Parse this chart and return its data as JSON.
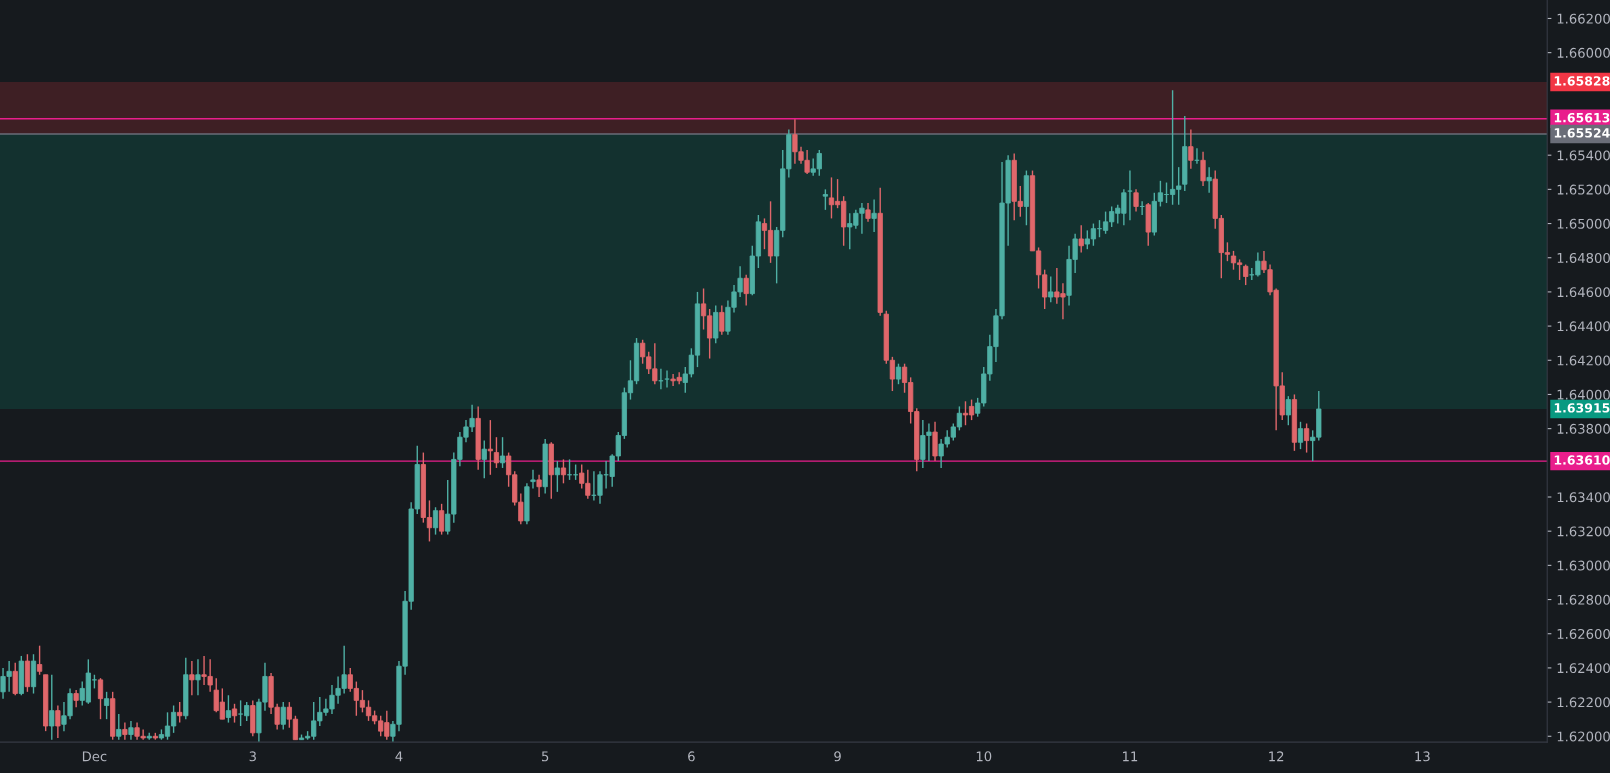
{
  "chart_data": {
    "type": "candlestick",
    "categories": [
      null,
      null,
      null,
      null,
      null,
      null,
      null,
      null,
      null,
      null,
      null,
      null,
      null,
      null,
      null,
      "Dec",
      null,
      null,
      null,
      null,
      null,
      null,
      null,
      null,
      null,
      null,
      null,
      null,
      null,
      null,
      null,
      null,
      null,
      null,
      null,
      null,
      null,
      null,
      null,
      null,
      null,
      "3",
      null,
      null,
      null,
      null,
      null,
      null,
      null,
      null,
      null,
      null,
      null,
      null,
      null,
      null,
      null,
      null,
      null,
      null,
      null,
      null,
      null,
      null,
      null,
      "4",
      null,
      null,
      null,
      null,
      null,
      null,
      null,
      null,
      null,
      null,
      null,
      null,
      null,
      null,
      null,
      null,
      null,
      null,
      null,
      null,
      null,
      null,
      null,
      "5",
      null,
      null,
      null,
      null,
      null,
      null,
      null,
      null,
      null,
      null,
      null,
      null,
      null,
      null,
      null,
      null,
      null,
      null,
      null,
      null,
      null,
      null,
      null,
      "6",
      null,
      null,
      null,
      null,
      null,
      null,
      null,
      null,
      null,
      null,
      null,
      null,
      null,
      null,
      null,
      null,
      null,
      null,
      null,
      null,
      null,
      null,
      null,
      "9",
      null,
      null,
      null,
      null,
      null,
      null,
      null,
      null,
      null,
      null,
      null,
      null,
      null,
      null,
      null,
      null,
      null,
      null,
      null,
      null,
      null,
      null,
      null,
      "10",
      null,
      null,
      null,
      null,
      null,
      null,
      null,
      null,
      null,
      null,
      null,
      null,
      null,
      null,
      null,
      null,
      null,
      null,
      null,
      null,
      null,
      null,
      null,
      "11",
      null,
      null,
      null,
      null,
      null,
      null,
      null,
      null,
      null,
      null,
      null,
      null,
      null,
      null,
      null,
      null,
      null,
      null,
      null,
      null,
      null,
      null,
      null,
      "12",
      null,
      null,
      null,
      null,
      null,
      null,
      null,
      null,
      null,
      null,
      null,
      null,
      null,
      null,
      null,
      null,
      null,
      null,
      null,
      null,
      null,
      null,
      null,
      "13",
      null,
      null,
      null,
      null,
      null,
      null,
      null,
      null,
      null,
      null,
      null,
      null,
      null,
      null,
      null,
      null,
      null,
      null,
      null,
      null
    ],
    "ohlc": [
      [
        1.6226,
        1.624,
        1.6222,
        1.6235
      ],
      [
        1.6235,
        1.6244,
        1.6226,
        1.6238
      ],
      [
        1.6238,
        1.6243,
        1.6224,
        1.6225
      ],
      [
        1.6225,
        1.6247,
        1.6224,
        1.6244
      ],
      [
        1.6244,
        1.6248,
        1.6226,
        1.6229
      ],
      [
        1.6229,
        1.6248,
        1.6225,
        1.6244
      ],
      [
        1.6242,
        1.6253,
        1.6236,
        1.6238
      ],
      [
        1.6236,
        1.6236,
        1.6203,
        1.6206
      ],
      [
        1.6206,
        1.6236,
        1.6198,
        1.6215
      ],
      [
        1.6215,
        1.6218,
        1.6199,
        1.6206
      ],
      [
        1.6207,
        1.622,
        1.6203,
        1.6212
      ],
      [
        1.6212,
        1.6228,
        1.621,
        1.6225
      ],
      [
        1.6225,
        1.6227,
        1.6217,
        1.6221
      ],
      [
        1.6221,
        1.6232,
        1.6218,
        1.6228
      ],
      [
        1.622,
        1.6245,
        1.6219,
        1.6237
      ],
      [
        1.6233,
        1.6236,
        1.6228,
        1.6233
      ],
      [
        1.6233,
        1.6234,
        1.621,
        1.6222
      ],
      [
        1.6218,
        1.6226,
        1.621,
        1.6222
      ],
      [
        1.6222,
        1.6226,
        1.6198,
        1.62
      ],
      [
        1.62,
        1.6213,
        1.6198,
        1.6204
      ],
      [
        1.6204,
        1.6208,
        1.6198,
        1.6201
      ],
      [
        1.6201,
        1.6209,
        1.6198,
        1.6205
      ],
      [
        1.6205,
        1.6208,
        1.6198,
        1.62
      ],
      [
        1.62,
        1.6204,
        1.6198,
        1.6199
      ],
      [
        1.6199,
        1.6202,
        1.6198,
        1.62
      ],
      [
        1.62,
        1.6202,
        1.6198,
        1.6199
      ],
      [
        1.6199,
        1.6204,
        1.6198,
        1.6201
      ],
      [
        1.62,
        1.6214,
        1.6198,
        1.6206
      ],
      [
        1.6206,
        1.6218,
        1.6202,
        1.6214
      ],
      [
        1.6214,
        1.622,
        1.6208,
        1.6212
      ],
      [
        1.6212,
        1.6246,
        1.621,
        1.6236
      ],
      [
        1.6236,
        1.6244,
        1.6224,
        1.6233
      ],
      [
        1.6233,
        1.6245,
        1.6224,
        1.6236
      ],
      [
        1.6236,
        1.6247,
        1.623,
        1.6235
      ],
      [
        1.6235,
        1.6245,
        1.6226,
        1.623
      ],
      [
        1.6227,
        1.6234,
        1.6214,
        1.6215
      ],
      [
        1.622,
        1.6228,
        1.621,
        1.621
      ],
      [
        1.6211,
        1.6224,
        1.6208,
        1.6215
      ],
      [
        1.6216,
        1.6219,
        1.6208,
        1.6212
      ],
      [
        1.6213,
        1.6221,
        1.6206,
        1.6213
      ],
      [
        1.6212,
        1.622,
        1.6209,
        1.6218
      ],
      [
        1.6218,
        1.6221,
        1.62,
        1.6202
      ],
      [
        1.6202,
        1.6222,
        1.6197,
        1.622
      ],
      [
        1.622,
        1.6243,
        1.6215,
        1.6235
      ],
      [
        1.6235,
        1.6237,
        1.6213,
        1.6217
      ],
      [
        1.6217,
        1.6219,
        1.6204,
        1.6207
      ],
      [
        1.6207,
        1.622,
        1.6204,
        1.6217
      ],
      [
        1.6217,
        1.622,
        1.6205,
        1.621
      ],
      [
        1.621,
        1.6212,
        1.6198,
        1.6198
      ],
      [
        1.6198,
        1.6201,
        1.6198,
        1.6199
      ],
      [
        1.6199,
        1.6203,
        1.6198,
        1.62
      ],
      [
        1.62,
        1.622,
        1.6198,
        1.6209
      ],
      [
        1.6209,
        1.6223,
        1.6206,
        1.6214
      ],
      [
        1.6214,
        1.6222,
        1.6212,
        1.6216
      ],
      [
        1.6216,
        1.623,
        1.6213,
        1.6224
      ],
      [
        1.6224,
        1.6235,
        1.6219,
        1.6228
      ],
      [
        1.6228,
        1.6253,
        1.6225,
        1.6236
      ],
      [
        1.6236,
        1.624,
        1.6226,
        1.6228
      ],
      [
        1.6228,
        1.6232,
        1.6212,
        1.6221
      ],
      [
        1.6221,
        1.6227,
        1.6214,
        1.6217
      ],
      [
        1.6217,
        1.6221,
        1.6209,
        1.6212
      ],
      [
        1.6212,
        1.6215,
        1.6207,
        1.6209
      ],
      [
        1.6209,
        1.6212,
        1.62,
        1.6203
      ],
      [
        1.6208,
        1.6215,
        1.6198,
        1.62
      ],
      [
        1.62,
        1.6209,
        1.6197,
        1.6207
      ],
      [
        1.6207,
        1.6244,
        1.6203,
        1.6241
      ],
      [
        1.6241,
        1.6285,
        1.6236,
        1.6279
      ],
      [
        1.6279,
        1.6337,
        1.6274,
        1.6333
      ],
      [
        1.6333,
        1.637,
        1.633,
        1.6359
      ],
      [
        1.6359,
        1.6366,
        1.6325,
        1.6328
      ],
      [
        1.6328,
        1.6338,
        1.6314,
        1.6322
      ],
      [
        1.6322,
        1.6334,
        1.6318,
        1.6332
      ],
      [
        1.6332,
        1.6336,
        1.6318,
        1.632
      ],
      [
        1.632,
        1.635,
        1.6318,
        1.633
      ],
      [
        1.633,
        1.6366,
        1.6325,
        1.6362
      ],
      [
        1.6362,
        1.6378,
        1.6358,
        1.6375
      ],
      [
        1.6375,
        1.6385,
        1.6372,
        1.6381
      ],
      [
        1.6381,
        1.6394,
        1.6378,
        1.6386
      ],
      [
        1.6386,
        1.6393,
        1.6356,
        1.6362
      ],
      [
        1.6362,
        1.6373,
        1.6351,
        1.6368
      ],
      [
        1.6368,
        1.6385,
        1.6353,
        1.6367
      ],
      [
        1.6366,
        1.6375,
        1.6357,
        1.636
      ],
      [
        1.636,
        1.6375,
        1.6357,
        1.6364
      ],
      [
        1.6364,
        1.6366,
        1.6346,
        1.6353
      ],
      [
        1.6353,
        1.6355,
        1.6335,
        1.6337
      ],
      [
        1.6337,
        1.6342,
        1.6324,
        1.6326
      ],
      [
        1.6326,
        1.6348,
        1.6324,
        1.6346
      ],
      [
        1.6349,
        1.6356,
        1.6345,
        1.635
      ],
      [
        1.635,
        1.6353,
        1.634,
        1.6346
      ],
      [
        1.6346,
        1.6374,
        1.6342,
        1.6371
      ],
      [
        1.6371,
        1.6372,
        1.6339,
        1.6353
      ],
      [
        1.6353,
        1.6361,
        1.6343,
        1.6357
      ],
      [
        1.6357,
        1.6362,
        1.6348,
        1.6353
      ],
      [
        1.6353,
        1.6362,
        1.635,
        1.6353
      ],
      [
        1.6353,
        1.6359,
        1.635,
        1.6353
      ],
      [
        1.6354,
        1.6359,
        1.6345,
        1.6348
      ],
      [
        1.6348,
        1.6356,
        1.6339,
        1.6341
      ],
      [
        1.6341,
        1.6355,
        1.6338,
        1.6341
      ],
      [
        1.6341,
        1.6355,
        1.6336,
        1.6353
      ],
      [
        1.6353,
        1.6361,
        1.6345,
        1.6353
      ],
      [
        1.6352,
        1.6365,
        1.6346,
        1.6364
      ],
      [
        1.6364,
        1.6378,
        1.6361,
        1.6376
      ],
      [
        1.6376,
        1.6404,
        1.6374,
        1.6401
      ],
      [
        1.6401,
        1.642,
        1.6397,
        1.6408
      ],
      [
        1.6408,
        1.6433,
        1.6406,
        1.643
      ],
      [
        1.643,
        1.6432,
        1.6418,
        1.6422
      ],
      [
        1.6422,
        1.6425,
        1.6412,
        1.6415
      ],
      [
        1.6415,
        1.643,
        1.6406,
        1.6408
      ],
      [
        1.6408,
        1.6415,
        1.6403,
        1.6408
      ],
      [
        1.6409,
        1.6414,
        1.6404,
        1.6409
      ],
      [
        1.6409,
        1.6412,
        1.6405,
        1.6408
      ],
      [
        1.641,
        1.6413,
        1.6406,
        1.6408
      ],
      [
        1.6407,
        1.6416,
        1.6401,
        1.6412
      ],
      [
        1.6412,
        1.6427,
        1.641,
        1.6423
      ],
      [
        1.6423,
        1.646,
        1.6416,
        1.6453
      ],
      [
        1.6453,
        1.6462,
        1.6438,
        1.6446
      ],
      [
        1.6446,
        1.645,
        1.6421,
        1.6433
      ],
      [
        1.6433,
        1.6452,
        1.643,
        1.6448
      ],
      [
        1.6448,
        1.6452,
        1.6435,
        1.6437
      ],
      [
        1.6437,
        1.6455,
        1.6435,
        1.6451
      ],
      [
        1.6451,
        1.6464,
        1.6448,
        1.646
      ],
      [
        1.646,
        1.6475,
        1.6457,
        1.6468
      ],
      [
        1.6468,
        1.647,
        1.6452,
        1.6459
      ],
      [
        1.6459,
        1.6487,
        1.6458,
        1.6481
      ],
      [
        1.6481,
        1.6505,
        1.6474,
        1.6501
      ],
      [
        1.65,
        1.6503,
        1.6485,
        1.6496
      ],
      [
        1.6496,
        1.6513,
        1.6477,
        1.6481
      ],
      [
        1.6481,
        1.6498,
        1.6465,
        1.6496
      ],
      [
        1.6496,
        1.6543,
        1.6492,
        1.6532
      ],
      [
        1.6532,
        1.6555,
        1.6527,
        1.6552
      ],
      [
        1.6552,
        1.6561,
        1.6535,
        1.6542
      ],
      [
        1.6542,
        1.6545,
        1.6535,
        1.6537
      ],
      [
        1.6537,
        1.6543,
        1.6529,
        1.653
      ],
      [
        1.653,
        1.6538,
        1.6528,
        1.6532
      ],
      [
        1.6532,
        1.6543,
        1.6528,
        1.6541
      ],
      [
        1.6516,
        1.652,
        1.6508,
        1.6517
      ],
      [
        1.6515,
        1.6527,
        1.6503,
        1.6511
      ],
      [
        1.6513,
        1.6526,
        1.6509,
        1.6511
      ],
      [
        1.6513,
        1.6516,
        1.6487,
        1.6498
      ],
      [
        1.6498,
        1.6506,
        1.6485,
        1.65
      ],
      [
        1.6499,
        1.6508,
        1.6497,
        1.6506
      ],
      [
        1.6506,
        1.6512,
        1.6494,
        1.6509
      ],
      [
        1.6508,
        1.6512,
        1.6501,
        1.6503
      ],
      [
        1.6503,
        1.6514,
        1.6495,
        1.6506
      ],
      [
        1.6506,
        1.6521,
        1.6446,
        1.6448
      ],
      [
        1.6447,
        1.6449,
        1.6418,
        1.642
      ],
      [
        1.642,
        1.6422,
        1.6402,
        1.6409
      ],
      [
        1.6409,
        1.6418,
        1.6406,
        1.6416
      ],
      [
        1.6416,
        1.6418,
        1.6401,
        1.6407
      ],
      [
        1.6407,
        1.641,
        1.6383,
        1.639
      ],
      [
        1.639,
        1.6392,
        1.6355,
        1.6362
      ],
      [
        1.6362,
        1.6385,
        1.6357,
        1.6376
      ],
      [
        1.6376,
        1.6383,
        1.6361,
        1.6378
      ],
      [
        1.6378,
        1.6384,
        1.6361,
        1.6364
      ],
      [
        1.6364,
        1.6374,
        1.6357,
        1.6371
      ],
      [
        1.6371,
        1.6379,
        1.6369,
        1.6375
      ],
      [
        1.6375,
        1.6383,
        1.6373,
        1.6381
      ],
      [
        1.6381,
        1.6393,
        1.6379,
        1.6389
      ],
      [
        1.6389,
        1.6396,
        1.6382,
        1.6388
      ],
      [
        1.6393,
        1.6397,
        1.6385,
        1.6388
      ],
      [
        1.6389,
        1.6398,
        1.6387,
        1.6395
      ],
      [
        1.6395,
        1.6416,
        1.6393,
        1.6412
      ],
      [
        1.6412,
        1.6435,
        1.6408,
        1.6428
      ],
      [
        1.6428,
        1.645,
        1.6419,
        1.6446
      ],
      [
        1.6446,
        1.6536,
        1.6444,
        1.6512
      ],
      [
        1.6512,
        1.654,
        1.6487,
        1.6537
      ],
      [
        1.6537,
        1.6541,
        1.6502,
        1.6513
      ],
      [
        1.6513,
        1.6522,
        1.6504,
        1.651
      ],
      [
        1.651,
        1.6531,
        1.6499,
        1.6528
      ],
      [
        1.6528,
        1.6531,
        1.6484,
        1.6484
      ],
      [
        1.6484,
        1.6486,
        1.6462,
        1.647
      ],
      [
        1.647,
        1.6473,
        1.645,
        1.6457
      ],
      [
        1.6457,
        1.6469,
        1.6454,
        1.646
      ],
      [
        1.646,
        1.6474,
        1.6453,
        1.6457
      ],
      [
        1.6459,
        1.6465,
        1.6444,
        1.6457
      ],
      [
        1.6458,
        1.6487,
        1.6452,
        1.6479
      ],
      [
        1.6479,
        1.6494,
        1.6471,
        1.6491
      ],
      [
        1.6491,
        1.6499,
        1.6483,
        1.6487
      ],
      [
        1.6488,
        1.6496,
        1.6485,
        1.6491
      ],
      [
        1.6491,
        1.65,
        1.6487,
        1.6497
      ],
      [
        1.6497,
        1.6502,
        1.6492,
        1.6497
      ],
      [
        1.6496,
        1.6507,
        1.6494,
        1.6501
      ],
      [
        1.6501,
        1.651,
        1.6498,
        1.6507
      ],
      [
        1.6506,
        1.6511,
        1.65,
        1.6509
      ],
      [
        1.6506,
        1.652,
        1.6499,
        1.6518
      ],
      [
        1.6519,
        1.6531,
        1.6502,
        1.6519
      ],
      [
        1.6518,
        1.652,
        1.6507,
        1.651
      ],
      [
        1.651,
        1.6513,
        1.6505,
        1.651
      ],
      [
        1.6511,
        1.6512,
        1.6487,
        1.6495
      ],
      [
        1.6495,
        1.6518,
        1.6493,
        1.6513
      ],
      [
        1.6513,
        1.6525,
        1.651,
        1.6518
      ],
      [
        1.6517,
        1.6524,
        1.6512,
        1.6517
      ],
      [
        1.6517,
        1.6578,
        1.6511,
        1.652
      ],
      [
        1.652,
        1.6533,
        1.6511,
        1.6522
      ],
      [
        1.6523,
        1.6563,
        1.6519,
        1.6545
      ],
      [
        1.6545,
        1.6555,
        1.6532,
        1.6537
      ],
      [
        1.6537,
        1.6544,
        1.6535,
        1.6537
      ],
      [
        1.6537,
        1.6542,
        1.6522,
        1.6525
      ],
      [
        1.6525,
        1.6533,
        1.6518,
        1.6527
      ],
      [
        1.6526,
        1.6531,
        1.6497,
        1.6503
      ],
      [
        1.6503,
        1.6505,
        1.6468,
        1.6483
      ],
      [
        1.6483,
        1.6489,
        1.6478,
        1.6482
      ],
      [
        1.6481,
        1.6484,
        1.6473,
        1.6477
      ],
      [
        1.6477,
        1.6479,
        1.6467,
        1.6476
      ],
      [
        1.6475,
        1.6476,
        1.6464,
        1.6469
      ],
      [
        1.647,
        1.6474,
        1.6467,
        1.647
      ],
      [
        1.647,
        1.6483,
        1.6469,
        1.6478
      ],
      [
        1.6478,
        1.6484,
        1.6471,
        1.6473
      ],
      [
        1.6473,
        1.6476,
        1.6458,
        1.646
      ],
      [
        1.6461,
        1.6462,
        1.6379,
        1.6405
      ],
      [
        1.6405,
        1.6413,
        1.6385,
        1.6388
      ],
      [
        1.6388,
        1.6399,
        1.6382,
        1.6397
      ],
      [
        1.6397,
        1.64,
        1.6367,
        1.6372
      ],
      [
        1.6372,
        1.6384,
        1.6368,
        1.638
      ],
      [
        1.638,
        1.6383,
        1.6366,
        1.6373
      ],
      [
        1.6373,
        1.6379,
        1.6361,
        1.6375
      ],
      [
        1.6375,
        1.6402,
        1.6373,
        1.63915
      ],
      null,
      null,
      null,
      null,
      null,
      null,
      null,
      null,
      null,
      null,
      null,
      null,
      null,
      null,
      null,
      null,
      null,
      null,
      null,
      null,
      null,
      null,
      null,
      null,
      null,
      null,
      null,
      null,
      null,
      null,
      null,
      null,
      null,
      null,
      null,
      null,
      null
    ],
    "ylim": [
      1.61966,
      1.66308
    ],
    "yticks": [
      {
        "value": 1.62,
        "label": "1.62000"
      },
      {
        "value": 1.622,
        "label": "1.62200"
      },
      {
        "value": 1.624,
        "label": "1.62400"
      },
      {
        "value": 1.626,
        "label": "1.62600"
      },
      {
        "value": 1.628,
        "label": "1.62800"
      },
      {
        "value": 1.63,
        "label": "1.63000"
      },
      {
        "value": 1.632,
        "label": "1.63200"
      },
      {
        "value": 1.634,
        "label": "1.63400"
      },
      {
        "value": 1.638,
        "label": "1.63800"
      },
      {
        "value": 1.64,
        "label": "1.64000"
      },
      {
        "value": 1.642,
        "label": "1.64200"
      },
      {
        "value": 1.644,
        "label": "1.64400"
      },
      {
        "value": 1.646,
        "label": "1.64600"
      },
      {
        "value": 1.648,
        "label": "1.64800"
      },
      {
        "value": 1.65,
        "label": "1.65000"
      },
      {
        "value": 1.652,
        "label": "1.65200"
      },
      {
        "value": 1.654,
        "label": "1.65400"
      },
      {
        "value": 1.66,
        "label": "1.66000"
      },
      {
        "value": 1.662,
        "label": "1.66200"
      }
    ],
    "bands": [
      {
        "axis": "y",
        "from": 1.65828,
        "to": 1.65524,
        "label": "1.65828",
        "color": "#f23645"
      },
      {
        "axis": "y",
        "from": 1.63915,
        "to": 1.65524,
        "label": "1.63915",
        "color": "#089981"
      }
    ],
    "ref_lines": [
      {
        "axis": "y",
        "value": 1.65613,
        "label": "1.65613",
        "color": "#e91e8c"
      },
      {
        "axis": "y",
        "value": 1.65524,
        "label": "1.65524",
        "color": "#6a6d78"
      },
      {
        "axis": "y",
        "value": 1.6361,
        "label": "1.63610",
        "color": "#e91e8c"
      }
    ]
  }
}
